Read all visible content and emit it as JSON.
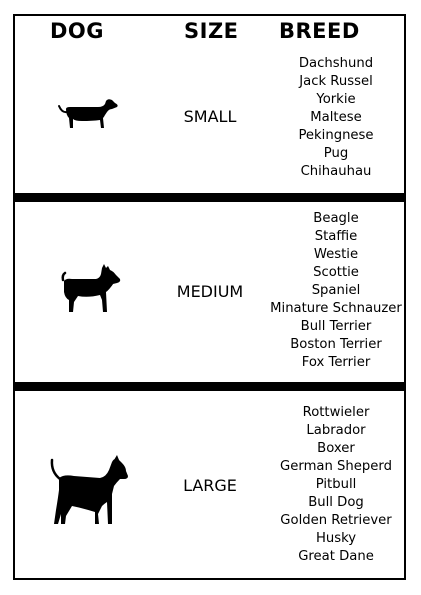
{
  "headers": {
    "dog": "DOG",
    "size": "SIZE",
    "breed": "BREED"
  },
  "rows": [
    {
      "icon": "dachshund-icon",
      "size": "SMALL",
      "breeds": [
        "Dachshund",
        "Jack Russel",
        "Yorkie",
        "Maltese",
        "Pekingnese",
        "Pug",
        "Chihauhau"
      ]
    },
    {
      "icon": "schnauzer-icon",
      "size": "MEDIUM",
      "breeds": [
        "Beagle",
        "Staffie",
        "Westie",
        "Scottie",
        "Spaniel",
        "Minature Schnauzer",
        "Bull Terrier",
        "Boston Terrier",
        "Fox Terrier"
      ]
    },
    {
      "icon": "great-dane-icon",
      "size": "LARGE",
      "breeds": [
        "Rottwieler",
        "Labrador",
        "Boxer",
        "German Sheperd",
        "Pitbull",
        "Bull Dog",
        "Golden Retriever",
        "Husky",
        "Great Dane"
      ]
    }
  ]
}
